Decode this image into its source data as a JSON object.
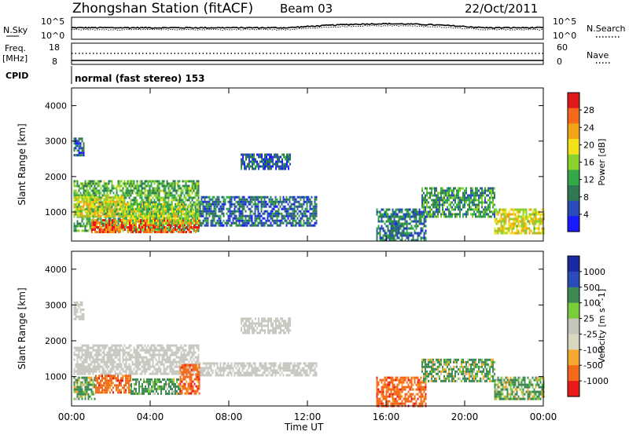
{
  "header": {
    "station": "Zhongshan Station (fitACF)",
    "beam": "Beam 03",
    "date": "22/Oct/2011"
  },
  "strips": {
    "nsky": {
      "left_label": "N.Sky",
      "left_ticks": [
        "10^5",
        "10^0"
      ],
      "right_label": "N.Search",
      "right_ticks": [
        "10^5",
        "10^0"
      ]
    },
    "freq": {
      "left_label_1": "Freq.",
      "left_label_2": "[MHz]",
      "left_ticks": [
        "18",
        "8"
      ],
      "right_label": "Nave",
      "right_ticks": [
        "60",
        "0"
      ]
    },
    "cpid": {
      "label": "CPID",
      "value": "normal (fast stereo) 153"
    }
  },
  "colors": {
    "power": [
      "#1a1aff",
      "#2a4bb8",
      "#2f7a52",
      "#35a84a",
      "#8ad22e",
      "#f2e21a",
      "#f2a31a",
      "#f26a1a",
      "#e01a1a"
    ],
    "velocity": [
      "#e81a1a",
      "#f26a1a",
      "#f7a833",
      "#d8d8c0",
      "#c4c4b8",
      "#7acc3a",
      "#3e8a55",
      "#2a4bb8",
      "#1a2aa0"
    ],
    "gray": "#c8c8c0"
  },
  "chart_data": [
    {
      "type": "heatmap",
      "panel": "power",
      "ylabel": "Slant Range [km]",
      "xlabel": "Time UT",
      "ylim": [
        180,
        4500
      ],
      "xlim": [
        0,
        24
      ],
      "x_ticks": [
        "00:00",
        "04:00",
        "08:00",
        "12:00",
        "16:00",
        "20:00",
        "00:00"
      ],
      "y_ticks": [
        1000,
        2000,
        3000,
        4000
      ],
      "colorbar": {
        "label": "Power [dB]",
        "ticks": [
          "4",
          "8",
          "12",
          "16",
          "20",
          "24",
          "28"
        ],
        "range": [
          0,
          30
        ]
      },
      "regions": [
        {
          "t0": 0.1,
          "t1": 6.5,
          "r0": 450,
          "r1": 1900,
          "level": 12
        },
        {
          "t0": 1.0,
          "t1": 6.5,
          "r0": 450,
          "r1": 800,
          "level": 26
        },
        {
          "t0": 0.1,
          "t1": 2.6,
          "r0": 900,
          "r1": 1450,
          "level": 18
        },
        {
          "t0": 2.6,
          "t1": 6.5,
          "r0": 700,
          "r1": 1250,
          "level": 16
        },
        {
          "t0": 6.5,
          "t1": 12.5,
          "r0": 600,
          "r1": 1450,
          "level": 7
        },
        {
          "t0": 0.1,
          "t1": 0.6,
          "r0": 2600,
          "r1": 3100,
          "level": 6
        },
        {
          "t0": 8.6,
          "t1": 11.1,
          "r0": 2200,
          "r1": 2650,
          "level": 6
        },
        {
          "t0": 15.5,
          "t1": 18.0,
          "r0": 200,
          "r1": 1100,
          "level": 8
        },
        {
          "t0": 17.8,
          "t1": 21.5,
          "r0": 900,
          "r1": 1700,
          "level": 10
        },
        {
          "t0": 21.5,
          "t1": 24.0,
          "r0": 400,
          "r1": 1100,
          "level": 18
        }
      ]
    },
    {
      "type": "heatmap",
      "panel": "velocity",
      "ylabel": "Slant Range [km]",
      "xlabel": "Time UT",
      "ylim": [
        180,
        4500
      ],
      "xlim": [
        0,
        24
      ],
      "x_ticks": [
        "00:00",
        "04:00",
        "08:00",
        "12:00",
        "16:00",
        "20:00",
        "00:00"
      ],
      "y_ticks": [
        1000,
        2000,
        3000,
        4000
      ],
      "colorbar": {
        "label": "Velocity [m s^-1]",
        "ticks": [
          "1000",
          "500",
          "100",
          "25",
          "-25",
          "-100",
          "-500",
          "-1000"
        ],
        "range": [
          -1000,
          1000
        ]
      },
      "regions": [
        {
          "t0": 0.1,
          "t1": 6.5,
          "r0": 1050,
          "r1": 1900,
          "level": 0
        },
        {
          "t0": 6.5,
          "t1": 12.5,
          "r0": 1050,
          "r1": 1400,
          "level": 0
        },
        {
          "t0": 0.1,
          "t1": 1.2,
          "r0": 400,
          "r1": 1000,
          "level": 150
        },
        {
          "t0": 1.2,
          "t1": 3.0,
          "r0": 550,
          "r1": 1050,
          "level": -300
        },
        {
          "t0": 3.0,
          "t1": 5.5,
          "r0": 500,
          "r1": 950,
          "level": 200
        },
        {
          "t0": 5.5,
          "t1": 6.5,
          "r0": 500,
          "r1": 1350,
          "level": -300
        },
        {
          "t0": 0.1,
          "t1": 0.6,
          "r0": 2600,
          "r1": 3100,
          "level": 0
        },
        {
          "t0": 8.6,
          "t1": 11.1,
          "r0": 2200,
          "r1": 2650,
          "level": 0
        },
        {
          "t0": 15.5,
          "t1": 18.0,
          "r0": 200,
          "r1": 1000,
          "level": -300
        },
        {
          "t0": 17.8,
          "t1": 21.5,
          "r0": 900,
          "r1": 1500,
          "level": 150
        },
        {
          "t0": 21.5,
          "t1": 24.0,
          "r0": 400,
          "r1": 1000,
          "level": 150
        }
      ]
    }
  ]
}
